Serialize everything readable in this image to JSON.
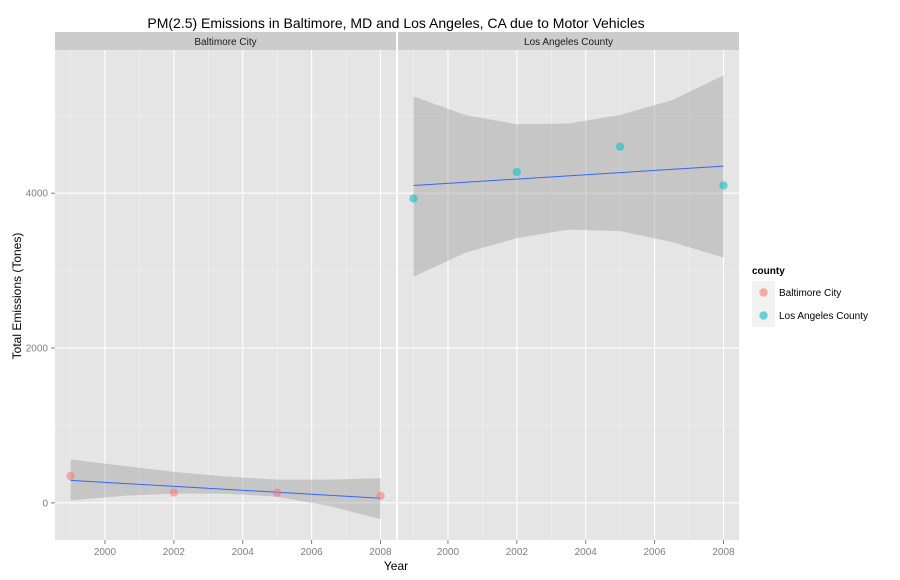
{
  "chart_data": {
    "type": "scatter",
    "title": "PM(2.5) Emissions in Baltimore, MD and Los Angeles, CA  due to Motor Vehicles",
    "xlabel": "Year",
    "ylabel": "Total Emissions (Tones)",
    "xlim": [
      1998.55,
      2008.45
    ],
    "ylim": [
      -480,
      5850
    ],
    "x_ticks": [
      2000,
      2002,
      2004,
      2006,
      2008
    ],
    "y_ticks": [
      0,
      2000,
      4000
    ],
    "x_tick_labels": [
      "2000",
      "2002",
      "2004",
      "2006",
      "2008"
    ],
    "y_tick_labels": [
      "0",
      "2000",
      "4000"
    ],
    "grid": true,
    "facet_by": "county",
    "legend": {
      "title": "county",
      "position": "right",
      "entries": [
        "Baltimore City",
        "Los Angeles County"
      ]
    },
    "panels": [
      {
        "strip_label": "Baltimore City",
        "color": "#F8766D",
        "x": [
          1999,
          2002,
          2005,
          2008
        ],
        "y": [
          346,
          134,
          130,
          89
        ],
        "trend": {
          "x": [
            1999,
            2008
          ],
          "y": [
            290,
            60
          ]
        },
        "confidence_band": {
          "x": [
            1999,
            2000.5,
            2002,
            2003.5,
            2005,
            2006.5,
            2008
          ],
          "lower": [
            30,
            90,
            120,
            120,
            80,
            -40,
            -210
          ],
          "upper": [
            560,
            480,
            400,
            340,
            300,
            300,
            320
          ]
        }
      },
      {
        "strip_label": "Los Angeles County",
        "color": "#00BFC4",
        "x": [
          1999,
          2002,
          2005,
          2008
        ],
        "y": [
          3931,
          4274,
          4601,
          4101
        ],
        "trend": {
          "x": [
            1999,
            2008
          ],
          "y": [
            4100,
            4350
          ]
        },
        "confidence_band": {
          "x": [
            1999,
            2000.5,
            2002,
            2003.5,
            2005,
            2006.5,
            2008
          ],
          "lower": [
            2920,
            3230,
            3420,
            3530,
            3510,
            3370,
            3170
          ],
          "upper": [
            5250,
            5010,
            4890,
            4900,
            5010,
            5200,
            5520
          ]
        }
      }
    ]
  },
  "colors": {
    "panel_bg": "#E5E5E5",
    "grid": "#FFFFFF",
    "strip_bg": "#CCCCCC",
    "trend_line": "#3366FF",
    "band": "#999999"
  }
}
